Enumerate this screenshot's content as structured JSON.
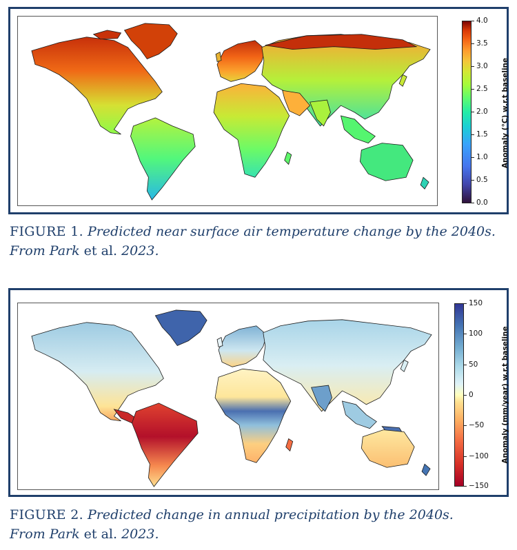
{
  "figures": [
    {
      "colorbar": {
        "label": "Anomaly (°C) w.r.t baseline",
        "ticks": [
          "4.0",
          "3.5",
          "3.0",
          "2.5",
          "2.0",
          "1.5",
          "1.0",
          "0.5",
          "0.0"
        ],
        "min": 0.0,
        "max": 4.0,
        "colormap": "turbo"
      },
      "caption": {
        "prefix": "FIGURE 1.",
        "text_italic": "Predicted near surface air temperature change by the 2040s.",
        "line2_italic_a": "From Park",
        "line2_roman": "et al.",
        "line2_italic_b": "2023."
      }
    },
    {
      "colorbar": {
        "label": "Anomaly (mm/year) w.r.t baseline",
        "ticks": [
          "150",
          "100",
          "50",
          "0",
          "−50",
          "−100",
          "−150"
        ],
        "min": -150,
        "max": 150,
        "colormap": "RdYlBu"
      },
      "caption": {
        "prefix": "FIGURE 2.",
        "text_italic": "Predicted change in annual precipitation by the 2040s.",
        "line2_italic_a": "From Park",
        "line2_roman": "et al.",
        "line2_italic_b": "2023."
      }
    }
  ],
  "colors": {
    "frame": "#1f3f6b",
    "caption": "#1f3f6b"
  }
}
